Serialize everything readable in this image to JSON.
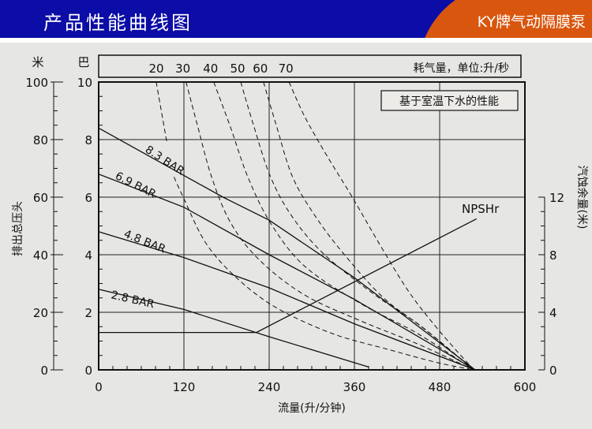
{
  "header": {
    "title": "产品性能曲线图",
    "brand": "KY牌气动隔膜泵"
  },
  "chart_data": {
    "type": "line",
    "xlabel": "流量(升/分钟)",
    "ylabel_left_meters": "排出总压头",
    "left_unit_meters": "米",
    "left_unit_bar": "巴",
    "ylabel_right": "汽蚀余量(米)",
    "air_header": "耗气量，单位:升/秒",
    "note": "基于室温下水的性能",
    "xlim": [
      0,
      600
    ],
    "xticks": [
      0,
      120,
      240,
      360,
      480,
      600
    ],
    "ylim_bar": [
      0,
      10
    ],
    "yticks_bar": [
      0,
      2,
      4,
      6,
      8,
      10
    ],
    "yticks_meters": [
      0,
      20,
      40,
      60,
      80,
      100
    ],
    "yticks_right": [
      0,
      4,
      8,
      12
    ],
    "grid": true,
    "pressure_series": [
      {
        "name": "8.3 BAR",
        "points": [
          [
            0,
            8.4
          ],
          [
            175,
            6.0
          ],
          [
            240,
            5.2
          ],
          [
            360,
            3.2
          ],
          [
            530,
            0
          ]
        ]
      },
      {
        "name": "6.9 BAR",
        "points": [
          [
            0,
            6.8
          ],
          [
            120,
            5.65
          ],
          [
            240,
            4.0
          ],
          [
            360,
            2.45
          ],
          [
            530,
            0
          ]
        ]
      },
      {
        "name": "4.8 BAR",
        "points": [
          [
            0,
            4.8
          ],
          [
            120,
            3.9
          ],
          [
            240,
            2.85
          ],
          [
            360,
            1.6
          ],
          [
            530,
            0
          ]
        ]
      },
      {
        "name": "2.8 BAR",
        "points": [
          [
            0,
            2.8
          ],
          [
            120,
            2.1
          ],
          [
            240,
            1.15
          ],
          [
            380,
            0.1
          ]
        ]
      }
    ],
    "air_series": [
      {
        "name": "20",
        "points": [
          [
            81,
            10
          ],
          [
            96,
            7.9
          ]
        ],
        "points2": [
          [
            106,
            6.7
          ],
          [
            119,
            6.0
          ],
          [
            151,
            4.4
          ],
          [
            194,
            3.2
          ],
          [
            250,
            2.16
          ],
          [
            329,
            1.26
          ],
          [
            409,
            0.7
          ],
          [
            477,
            0.25
          ],
          [
            528,
            0
          ]
        ]
      },
      {
        "name": "30",
        "points": [
          [
            123,
            10
          ],
          [
            139,
            8.5
          ],
          [
            159,
            6.7
          ],
          [
            186,
            5.1
          ],
          [
            227,
            3.8
          ],
          [
            290,
            2.6
          ],
          [
            369,
            1.7
          ],
          [
            449,
            0.9
          ],
          [
            528,
            0
          ]
        ]
      },
      {
        "name": "40",
        "points": [
          [
            162,
            10
          ],
          [
            186,
            8.4
          ],
          [
            210,
            6.7
          ],
          [
            242,
            5.1
          ],
          [
            290,
            3.6
          ],
          [
            369,
            2.3
          ],
          [
            449,
            1.26
          ],
          [
            528,
            0
          ]
        ]
      },
      {
        "name": "50",
        "points": [
          [
            200,
            10
          ],
          [
            218,
            8.5
          ],
          [
            242,
            6.7
          ],
          [
            273,
            5.3
          ],
          [
            318,
            4.0
          ],
          [
            389,
            2.6
          ],
          [
            449,
            1.6
          ],
          [
            528,
            0
          ]
        ]
      },
      {
        "name": "60",
        "points": [
          [
            232,
            10
          ],
          [
            250,
            8.5
          ],
          [
            273,
            6.7
          ],
          [
            306,
            5.3
          ],
          [
            346,
            4.0
          ],
          [
            401,
            2.5
          ],
          [
            460,
            1.4
          ],
          [
            528,
            0
          ]
        ]
      },
      {
        "name": "70",
        "points": [
          [
            268,
            10
          ],
          [
            290,
            8.8
          ],
          [
            321,
            7.45
          ],
          [
            357,
            6.0
          ],
          [
            397,
            4.3
          ],
          [
            437,
            2.7
          ],
          [
            480,
            1.34
          ],
          [
            528,
            0
          ]
        ]
      }
    ],
    "npshr": {
      "name": "NPSHr",
      "unit": "米",
      "points": [
        [
          0,
          2.6
        ],
        [
          222,
          2.6
        ],
        [
          532,
          10.5
        ]
      ]
    }
  }
}
